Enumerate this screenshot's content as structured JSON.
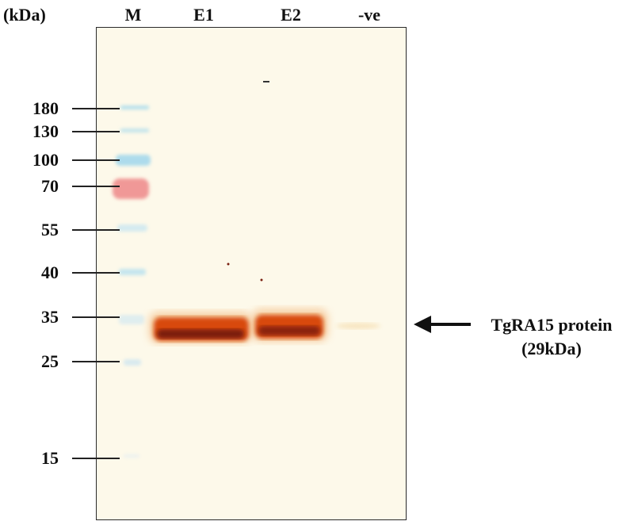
{
  "unit_label": "(kDa)",
  "lanes": [
    "M",
    "E1",
    "E2",
    "-ve"
  ],
  "markers": [
    "180",
    "130",
    "100",
    "70",
    "55",
    "40",
    "35",
    "25",
    "15"
  ],
  "annotation": {
    "line1": "TgRA15 protein",
    "line2": "(29kDa)"
  },
  "colors": {
    "gel_background": "#fdf9ea",
    "band_dark": "#7a1a08",
    "band_orange": "#d84a10",
    "marker_blue": "#a9dcec",
    "marker_red": "#ee8e8e"
  }
}
